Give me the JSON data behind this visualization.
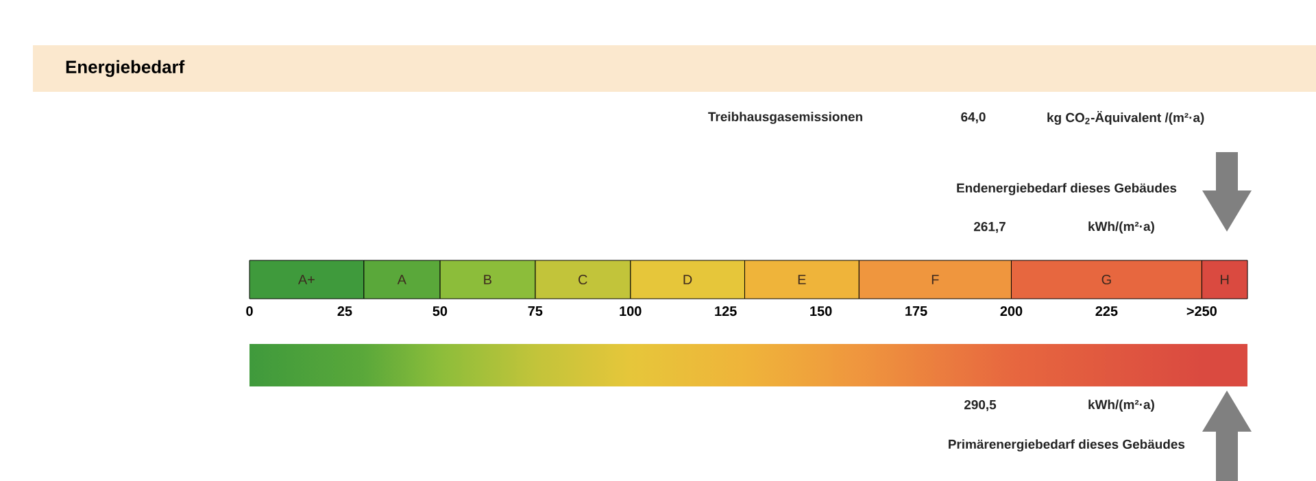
{
  "chart_data": {
    "type": "bar",
    "orientation": "horizontal",
    "stacked": true,
    "title": "Energiebedarf",
    "categories": [
      null
    ],
    "xlim": [
      0,
      262
    ],
    "xticks": [
      0,
      25,
      50,
      75,
      100,
      125,
      150,
      175,
      200,
      225,
      {
        "value": 250,
        "label": ">250"
      }
    ],
    "series": [
      {
        "name": "A+",
        "color": "#3f9a3c",
        "values": [
          30
        ]
      },
      {
        "name": "A",
        "color": "#5aa83a",
        "values": [
          20
        ]
      },
      {
        "name": "B",
        "color": "#8cbd3a",
        "values": [
          25
        ]
      },
      {
        "name": "C",
        "color": "#c2c43a",
        "values": [
          25
        ]
      },
      {
        "name": "D",
        "color": "#e6c63a",
        "values": [
          30
        ]
      },
      {
        "name": "E",
        "color": "#efb43a",
        "values": [
          30
        ]
      },
      {
        "name": "F",
        "color": "#ef963e",
        "values": [
          40
        ]
      },
      {
        "name": "G",
        "color": "#e7673f",
        "values": [
          50
        ]
      },
      {
        "name": "H",
        "color": "#da4a40",
        "values": [
          12
        ]
      }
    ],
    "annotations": [
      "Treibhausgasemissionen",
      "64,0",
      "kg CO$_{2}$-Äquivalent /(m²·a)",
      "Endenergiebedarf dieses Gebäudes",
      "261,7",
      "kWh/(m²·a)",
      "290,5",
      "kWh/(m²·a)",
      "Primärenergiebedarf dieses Gebäudes"
    ]
  }
}
